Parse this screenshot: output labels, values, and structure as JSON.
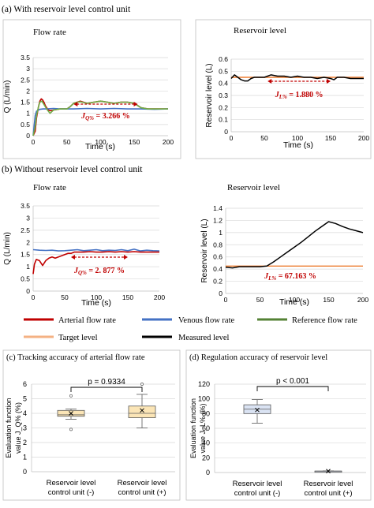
{
  "section_a": "(a)  With reservoir level control unit",
  "section_b": "(b)  Without reservoir level control unit",
  "legend": {
    "items": [
      {
        "label": "Arterial flow rate",
        "color": "#c00000"
      },
      {
        "label": "Venous flow rate",
        "color": "#4472c4"
      },
      {
        "label": "Reference  flow rate",
        "color": "#548235"
      },
      {
        "label": "Target level",
        "color": "#f4b183"
      },
      {
        "label": "Measured level",
        "color": "#000000"
      }
    ]
  },
  "colors": {
    "arterial": "#c00000",
    "venous": "#4472c4",
    "reference": "#70ad47",
    "target": "#ed7d31",
    "measured": "#000000",
    "grid": "#d9d9d9",
    "box_c": "#fbe5b6",
    "box_d": "#dae3f3",
    "annotation": "#c00000"
  },
  "chart_data": [
    {
      "id": "a_flow",
      "type": "line",
      "title": "Flow rate",
      "xlabel": "Time (s)",
      "ylabel": "Q (L/min)",
      "xlim": [
        0,
        200
      ],
      "ylim": [
        0,
        3.5
      ],
      "xticks": [
        "0",
        "50",
        "100",
        "150",
        "200"
      ],
      "yticks": [
        "0",
        "0.5",
        "1",
        "1.5",
        "2",
        "2.5",
        "3",
        "3.5"
      ],
      "annotation": "J_Q% = 3.266 %",
      "annotation_main": "J",
      "annotation_sub": "Q%",
      "annotation_value": " = 3.266 %",
      "annotation_arrow_x": [
        60,
        155
      ],
      "series": [
        {
          "key": "arterial",
          "x": [
            0,
            3,
            5,
            8,
            10,
            12,
            14,
            16,
            18,
            20,
            23,
            25,
            30,
            40,
            50,
            55,
            60,
            65,
            70,
            75,
            80,
            90,
            100,
            110,
            120,
            130,
            140,
            150,
            155,
            160,
            170,
            180,
            190,
            200
          ],
          "y": [
            0,
            0.2,
            0.8,
            1.3,
            1.55,
            1.65,
            1.6,
            1.5,
            1.35,
            1.25,
            1.15,
            1.12,
            1.15,
            1.2,
            1.2,
            1.3,
            1.45,
            1.5,
            1.55,
            1.5,
            1.45,
            1.5,
            1.55,
            1.5,
            1.45,
            1.5,
            1.5,
            1.45,
            1.35,
            1.25,
            1.2,
            1.2,
            1.2,
            1.2
          ]
        },
        {
          "key": "venous",
          "x": [
            0,
            3,
            5,
            8,
            10,
            15,
            20,
            30,
            40,
            60,
            80,
            100,
            120,
            140,
            160,
            180,
            200
          ],
          "y": [
            0,
            0.9,
            1.1,
            1.15,
            1.18,
            1.2,
            1.2,
            1.22,
            1.2,
            1.2,
            1.22,
            1.2,
            1.22,
            1.2,
            1.2,
            1.18,
            1.2
          ]
        },
        {
          "key": "reference",
          "x": [
            0,
            3,
            5,
            8,
            10,
            13,
            16,
            20,
            25,
            30,
            40,
            50,
            55,
            60,
            65,
            70,
            80,
            90,
            100,
            110,
            120,
            130,
            140,
            150,
            155,
            160,
            170,
            180,
            190,
            200
          ],
          "y": [
            0,
            0.4,
            0.9,
            1.3,
            1.5,
            1.55,
            1.4,
            1.2,
            1.0,
            1.15,
            1.2,
            1.2,
            1.3,
            1.45,
            1.5,
            1.52,
            1.45,
            1.5,
            1.55,
            1.5,
            1.45,
            1.5,
            1.5,
            1.45,
            1.35,
            1.25,
            1.2,
            1.2,
            1.2,
            1.2
          ]
        }
      ]
    },
    {
      "id": "a_level",
      "type": "line",
      "title": "Reservoir level",
      "xlabel": "Time (s)",
      "ylabel": "Reservoir level (L)",
      "xlim": [
        0,
        200
      ],
      "ylim": [
        0,
        0.6
      ],
      "xticks": [
        "0",
        "50",
        "100",
        "150",
        "200"
      ],
      "yticks": [
        "0",
        "0.1",
        "0.2",
        "0.3",
        "0.4",
        "0.5",
        "0.6"
      ],
      "annotation": "J_L% = 1.880 %",
      "annotation_main": "J",
      "annotation_sub": "L%",
      "annotation_value": " = 1.880 %",
      "annotation_arrow_x": [
        55,
        150
      ],
      "series": [
        {
          "key": "target",
          "x": [
            0,
            200
          ],
          "y": [
            0.45,
            0.45
          ]
        },
        {
          "key": "measured",
          "x": [
            0,
            5,
            10,
            15,
            20,
            25,
            30,
            35,
            40,
            50,
            60,
            70,
            80,
            90,
            100,
            110,
            120,
            130,
            140,
            150,
            155,
            160,
            170,
            180,
            190,
            200
          ],
          "y": [
            0.44,
            0.47,
            0.45,
            0.43,
            0.42,
            0.42,
            0.44,
            0.45,
            0.45,
            0.45,
            0.47,
            0.46,
            0.46,
            0.45,
            0.46,
            0.45,
            0.45,
            0.44,
            0.45,
            0.44,
            0.43,
            0.45,
            0.45,
            0.44,
            0.44,
            0.44
          ]
        }
      ]
    },
    {
      "id": "b_flow",
      "type": "line",
      "title": "Flow rate",
      "xlabel": "Time (s)",
      "ylabel": "Q (L/min)",
      "xlim": [
        0,
        200
      ],
      "ylim": [
        0,
        3.5
      ],
      "xticks": [
        "0",
        "50",
        "100",
        "150",
        "200"
      ],
      "yticks": [
        "0",
        "0.5",
        "1",
        "1.5",
        "2",
        "2.5",
        "3",
        "3.5"
      ],
      "annotation": "J_Q% = 2.877 %",
      "annotation_main": "J",
      "annotation_sub": "Q%",
      "annotation_value": " = 2. 877 %",
      "annotation_arrow_x": [
        60,
        150
      ],
      "series": [
        {
          "key": "venous",
          "x": [
            0,
            10,
            20,
            30,
            40,
            50,
            60,
            70,
            80,
            90,
            100,
            110,
            120,
            130,
            140,
            150,
            160,
            170,
            180,
            190,
            200
          ],
          "y": [
            1.7,
            1.68,
            1.67,
            1.68,
            1.65,
            1.66,
            1.68,
            1.7,
            1.66,
            1.68,
            1.7,
            1.66,
            1.68,
            1.67,
            1.7,
            1.66,
            1.72,
            1.65,
            1.68,
            1.66,
            1.65
          ]
        },
        {
          "key": "arterial",
          "x": [
            0,
            2,
            5,
            10,
            15,
            20,
            25,
            30,
            35,
            40,
            45,
            50,
            55,
            60,
            65,
            70,
            80,
            90,
            100,
            110,
            120,
            130,
            140,
            150,
            160,
            170,
            180,
            190,
            200
          ],
          "y": [
            0.7,
            1.1,
            1.3,
            1.25,
            1.05,
            1.25,
            1.35,
            1.4,
            1.35,
            1.4,
            1.45,
            1.5,
            1.55,
            1.55,
            1.6,
            1.6,
            1.6,
            1.62,
            1.6,
            1.6,
            1.62,
            1.6,
            1.62,
            1.6,
            1.62,
            1.6,
            1.6,
            1.6,
            1.6
          ]
        }
      ]
    },
    {
      "id": "b_level",
      "type": "line",
      "title": "Reservoir level",
      "xlabel": "Time (s)",
      "ylabel": "Reservoir level (L)",
      "xlim": [
        0,
        200
      ],
      "ylim": [
        0,
        1.4
      ],
      "xticks": [
        "0",
        "50",
        "100",
        "150",
        "200"
      ],
      "yticks": [
        "0",
        "0.2",
        "0.4",
        "0.6",
        "0.8",
        "1",
        "1.2",
        "1.4"
      ],
      "annotation": "J_L% = 67.163 %",
      "annotation_main": "J",
      "annotation_sub": "L%",
      "annotation_value": " = 67.163 %",
      "series": [
        {
          "key": "target",
          "x": [
            0,
            200
          ],
          "y": [
            0.45,
            0.45
          ]
        },
        {
          "key": "measured",
          "x": [
            0,
            10,
            20,
            30,
            40,
            50,
            60,
            70,
            80,
            90,
            100,
            110,
            120,
            130,
            140,
            150,
            160,
            170,
            180,
            190,
            200
          ],
          "y": [
            0.43,
            0.42,
            0.44,
            0.44,
            0.44,
            0.44,
            0.45,
            0.52,
            0.6,
            0.68,
            0.76,
            0.84,
            0.93,
            1.02,
            1.1,
            1.18,
            1.15,
            1.1,
            1.06,
            1.03,
            1.0
          ]
        }
      ]
    },
    {
      "id": "c_box",
      "type": "box",
      "title": "(c)  Tracking accuracy of arterial flow rate",
      "ylabel_line1": "Evaluation  function",
      "ylabel_line2": "value J_Q% (%)",
      "ylim": [
        0,
        6
      ],
      "yticks": [
        "0",
        "1",
        "2",
        "3",
        "4",
        "5",
        "6"
      ],
      "categories": [
        "Reservoir level\ncontrol unit (-)",
        "Reservoir level\ncontrol unit (+)"
      ],
      "cat_line1": [
        "Reservoir level",
        "Reservoir level"
      ],
      "cat_line2": [
        "control unit (-)",
        "control unit (+)"
      ],
      "significance": "p = 0.9334",
      "boxes": [
        {
          "min": 3.6,
          "q1": 3.8,
          "median": 3.9,
          "q3": 4.2,
          "max": 4.3,
          "mean": 4.0,
          "outliers": [
            2.9,
            5.2
          ]
        },
        {
          "min": 3.0,
          "q1": 3.7,
          "median": 4.0,
          "q3": 4.5,
          "max": 5.3,
          "mean": 4.2,
          "outliers": [
            6.0
          ]
        }
      ]
    },
    {
      "id": "d_box",
      "type": "box",
      "title": "(d)  Regulation accuracy of reservoir level",
      "ylabel_line1": "Evaluation  function",
      "ylabel_line2": "value J_L% (%)",
      "ylim": [
        0,
        120
      ],
      "yticks": [
        "0",
        "20",
        "40",
        "60",
        "80",
        "100",
        "120"
      ],
      "categories": [
        "Reservoir level\ncontrol unit (-)",
        "Reservoir level\ncontrol unit (+)"
      ],
      "cat_line1": [
        "Reservoir level",
        "Reservoir level"
      ],
      "cat_line2": [
        "control unit (-)",
        "control unit (+)"
      ],
      "significance": "p < 0.001",
      "boxes": [
        {
          "min": 67,
          "q1": 80,
          "median": 86,
          "q3": 92,
          "max": 99,
          "mean": 85,
          "outliers": []
        },
        {
          "min": 1.5,
          "q1": 1.8,
          "median": 1.9,
          "q3": 2.0,
          "max": 2.2,
          "mean": 1.9,
          "outliers": []
        }
      ]
    }
  ]
}
